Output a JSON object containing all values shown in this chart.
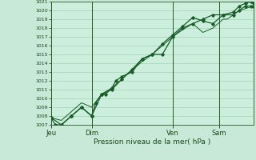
{
  "xlabel": "Pression niveau de la mer( hPa )",
  "bg_color": "#c8e8d8",
  "plot_bg_color": "#cceedd",
  "grid_color": "#99ccaa",
  "line_color": "#1a5c28",
  "ylim": [
    1007,
    1021
  ],
  "yticks": [
    1007,
    1008,
    1009,
    1010,
    1011,
    1012,
    1013,
    1014,
    1015,
    1016,
    1017,
    1018,
    1019,
    1020,
    1021
  ],
  "day_labels": [
    "Jeu",
    "Dim",
    "Ven",
    "Sam"
  ],
  "day_positions": [
    0.0,
    0.2,
    0.6,
    0.83
  ],
  "xlim": [
    0.0,
    1.0
  ],
  "series1_x": [
    0.0,
    0.02,
    0.05,
    0.1,
    0.15,
    0.2,
    0.22,
    0.25,
    0.27,
    0.3,
    0.32,
    0.35,
    0.4,
    0.45,
    0.5,
    0.55,
    0.6,
    0.65,
    0.7,
    0.75,
    0.8,
    0.85,
    0.9,
    0.93,
    0.96,
    0.99,
    1.0
  ],
  "series1_y": [
    1007.8,
    1007.0,
    1007.0,
    1008.0,
    1009.0,
    1008.0,
    1009.5,
    1010.5,
    1010.5,
    1011.2,
    1012.0,
    1012.5,
    1013.0,
    1014.5,
    1015.0,
    1015.0,
    1017.0,
    1018.0,
    1018.5,
    1019.0,
    1019.5,
    1019.5,
    1019.5,
    1020.0,
    1020.5,
    1020.5,
    1020.5
  ],
  "series2_x": [
    0.0,
    0.05,
    0.1,
    0.15,
    0.2,
    0.25,
    0.3,
    0.35,
    0.4,
    0.45,
    0.5,
    0.55,
    0.6,
    0.65,
    0.7,
    0.75,
    0.8,
    0.85,
    0.9,
    0.93,
    0.96,
    0.99,
    1.0
  ],
  "series2_y": [
    1007.8,
    1007.0,
    1008.0,
    1009.0,
    1008.0,
    1010.5,
    1011.0,
    1012.2,
    1013.3,
    1014.5,
    1015.0,
    1016.2,
    1017.2,
    1018.2,
    1019.2,
    1018.8,
    1018.5,
    1019.5,
    1019.8,
    1020.5,
    1020.8,
    1021.0,
    1020.8
  ],
  "series3_x": [
    0.0,
    0.05,
    0.1,
    0.15,
    0.2,
    0.25,
    0.3,
    0.35,
    0.4,
    0.45,
    0.5,
    0.55,
    0.6,
    0.65,
    0.7,
    0.75,
    0.8,
    0.85,
    0.87,
    0.9,
    0.93,
    0.96,
    1.0
  ],
  "series3_y": [
    1007.8,
    1007.5,
    1008.5,
    1009.5,
    1009.0,
    1010.5,
    1011.2,
    1012.2,
    1013.2,
    1014.2,
    1015.0,
    1016.0,
    1017.0,
    1017.8,
    1018.5,
    1017.5,
    1018.0,
    1019.0,
    1019.0,
    1019.5,
    1020.0,
    1020.2,
    1020.5
  ]
}
